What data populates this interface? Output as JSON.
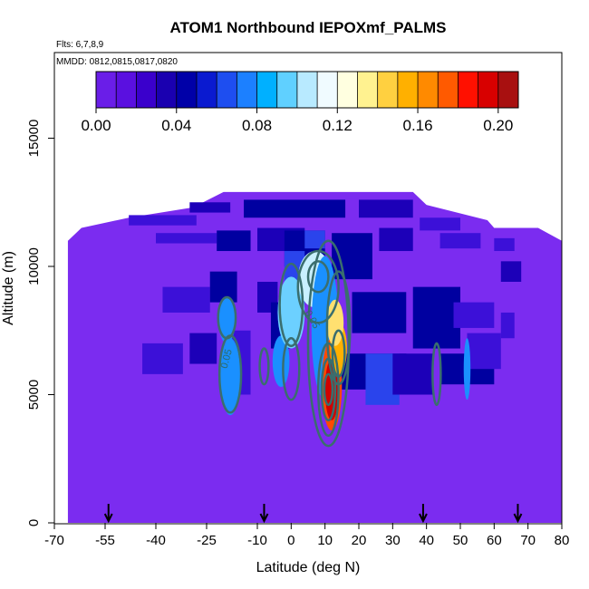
{
  "chart_data": {
    "type": "heatmap",
    "title": "ATOM1 Northbound IEPOXmf_PALMS",
    "flights_label": "Flts: 6,7,8,9",
    "dates_label": "MMDD: 0812,0815,0817,0820",
    "xlabel": "Latitude (deg N)",
    "ylabel": "Altitude (m)",
    "xlim": [
      -70,
      80
    ],
    "ylim": [
      0,
      17000
    ],
    "x_tick_labels": [
      "-70",
      "-55",
      "-40",
      "-25",
      "-10",
      "0",
      "10",
      "20",
      "30",
      "40",
      "50",
      "60",
      "70",
      "80"
    ],
    "x_ticks": [
      -70,
      -55,
      -40,
      -25,
      -10,
      0,
      10,
      20,
      30,
      40,
      50,
      60,
      70,
      80
    ],
    "y_tick_labels": [
      "0",
      "5000",
      "10000",
      "15000"
    ],
    "y_ticks": [
      0,
      5000,
      10000,
      15000
    ],
    "colorbar": {
      "range": [
        0,
        0.21
      ],
      "tick_labels": [
        "0.00",
        "0.04",
        "0.08",
        "0.12",
        "0.16",
        "0.20"
      ],
      "ticks": [
        0,
        0.04,
        0.08,
        0.12,
        0.16,
        0.2
      ],
      "colors": [
        "#6a1ee8",
        "#5a10e0",
        "#3a00cc",
        "#1a00b0",
        "#0000a8",
        "#0a1ad0",
        "#1e4ef0",
        "#1c80ff",
        "#00b0ff",
        "#60d0ff",
        "#b8eaff",
        "#f0fbff",
        "#ffffe0",
        "#fff290",
        "#ffd040",
        "#ffb000",
        "#ff8a00",
        "#ff5a00",
        "#ff1000",
        "#d80000",
        "#a81010"
      ]
    },
    "profile_markers_lat": [
      -54,
      -8,
      39,
      67
    ],
    "contour_levels": [
      "0.05",
      "0.05"
    ]
  }
}
